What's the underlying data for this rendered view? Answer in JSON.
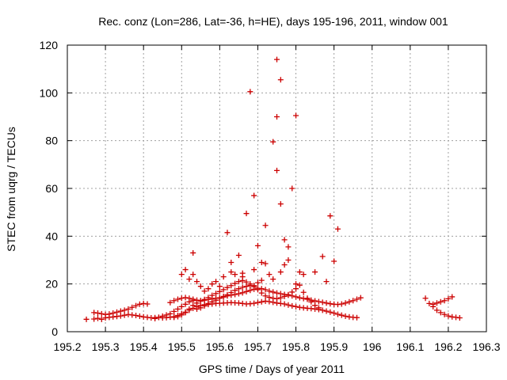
{
  "chart_data": {
    "type": "scatter",
    "title": "Rec. conz (Lon=286, Lat=-36, h=HE), days 195-196, 2011, window 001",
    "xlabel": "GPS time / Days of year 2011",
    "ylabel": "STEC from uqrg / TECUs",
    "xlim": [
      195.2,
      196.3
    ],
    "ylim": [
      0,
      120
    ],
    "xticks": [
      195.2,
      195.3,
      195.4,
      195.5,
      195.6,
      195.7,
      195.8,
      195.9,
      196,
      196.1,
      196.2,
      196.3
    ],
    "xtick_labels": [
      "195.2",
      "195.3",
      "195.4",
      "195.5",
      "195.6",
      "195.7",
      "195.8",
      "195.9",
      "196",
      "196.1",
      "196.2",
      "196.3"
    ],
    "yticks": [
      0,
      20,
      40,
      60,
      80,
      100,
      120
    ],
    "ytick_labels": [
      "0",
      "20",
      "40",
      "60",
      "80",
      "100",
      "120"
    ],
    "grid": true,
    "marker": "+",
    "color": "#cc0000",
    "series": [
      {
        "points": [
          [
            195.25,
            5.2
          ],
          [
            195.27,
            5.3
          ],
          [
            195.28,
            5.6
          ],
          [
            195.29,
            5.2
          ],
          [
            195.3,
            5.8
          ],
          [
            195.31,
            6.0
          ],
          [
            195.32,
            6.2
          ],
          [
            195.33,
            6.4
          ],
          [
            195.34,
            6.6
          ],
          [
            195.35,
            6.9
          ],
          [
            195.36,
            7.2
          ],
          [
            195.37,
            7.0
          ],
          [
            195.38,
            6.8
          ],
          [
            195.39,
            6.5
          ],
          [
            195.4,
            6.2
          ],
          [
            195.41,
            6.0
          ],
          [
            195.42,
            5.8
          ],
          [
            195.43,
            5.9
          ],
          [
            195.44,
            6.0
          ],
          [
            195.45,
            5.8
          ],
          [
            195.46,
            5.9
          ],
          [
            195.47,
            6.1
          ],
          [
            195.48,
            6.3
          ],
          [
            195.49,
            6.8
          ],
          [
            195.5,
            7.5
          ],
          [
            195.51,
            8.2
          ],
          [
            195.52,
            9.0
          ],
          [
            195.53,
            9.8
          ],
          [
            195.54,
            10.5
          ],
          [
            195.55,
            11.0
          ],
          [
            195.56,
            11.3
          ],
          [
            195.57,
            11.4
          ],
          [
            195.58,
            11.6
          ],
          [
            195.59,
            11.8
          ],
          [
            195.6,
            11.9
          ],
          [
            195.61,
            12.0
          ],
          [
            195.62,
            12.1
          ],
          [
            195.63,
            12.2
          ],
          [
            195.64,
            12.1
          ],
          [
            195.65,
            12.0
          ],
          [
            195.66,
            11.8
          ],
          [
            195.67,
            11.6
          ],
          [
            195.68,
            11.7
          ],
          [
            195.69,
            11.9
          ],
          [
            195.7,
            12.2
          ],
          [
            195.71,
            12.5
          ],
          [
            195.72,
            12.8
          ],
          [
            195.73,
            12.6
          ],
          [
            195.74,
            12.3
          ],
          [
            195.75,
            12.0
          ],
          [
            195.76,
            11.8
          ],
          [
            195.77,
            11.6
          ],
          [
            195.78,
            11.2
          ],
          [
            195.79,
            10.8
          ],
          [
            195.8,
            10.5
          ],
          [
            195.81,
            10.2
          ],
          [
            195.82,
            10.0
          ],
          [
            195.83,
            9.8
          ],
          [
            195.84,
            9.7
          ],
          [
            195.85,
            9.5
          ],
          [
            195.86,
            9.3
          ],
          [
            195.87,
            9.0
          ],
          [
            195.88,
            8.6
          ],
          [
            195.89,
            8.2
          ],
          [
            195.9,
            7.8
          ],
          [
            195.91,
            7.3
          ],
          [
            195.92,
            6.9
          ],
          [
            195.93,
            6.5
          ],
          [
            195.94,
            6.2
          ],
          [
            195.95,
            6.0
          ],
          [
            195.96,
            5.9
          ],
          [
            195.27,
            8.0
          ],
          [
            195.28,
            7.8
          ],
          [
            195.29,
            7.5
          ],
          [
            195.3,
            7.2
          ],
          [
            195.31,
            7.4
          ],
          [
            195.32,
            7.8
          ],
          [
            195.33,
            8.2
          ],
          [
            195.34,
            8.6
          ],
          [
            195.35,
            9.0
          ],
          [
            195.36,
            9.5
          ],
          [
            195.37,
            10.2
          ],
          [
            195.38,
            10.9
          ],
          [
            195.39,
            11.5
          ],
          [
            195.4,
            11.8
          ],
          [
            195.41,
            11.6
          ],
          [
            195.47,
            12.2
          ],
          [
            195.48,
            13.0
          ],
          [
            195.49,
            13.6
          ],
          [
            195.5,
            14.0
          ],
          [
            195.51,
            14.3
          ],
          [
            195.52,
            14.0
          ],
          [
            195.53,
            13.6
          ],
          [
            195.54,
            13.2
          ],
          [
            195.55,
            13.0
          ],
          [
            195.56,
            13.2
          ],
          [
            195.57,
            13.5
          ],
          [
            195.58,
            13.8
          ],
          [
            195.59,
            14.0
          ],
          [
            195.6,
            14.2
          ],
          [
            195.61,
            14.5
          ],
          [
            195.62,
            15.0
          ],
          [
            195.63,
            15.3
          ],
          [
            195.64,
            15.6
          ],
          [
            195.65,
            15.9
          ],
          [
            195.66,
            16.3
          ],
          [
            195.67,
            16.8
          ],
          [
            195.68,
            17.3
          ],
          [
            195.69,
            17.8
          ],
          [
            195.7,
            18.2
          ],
          [
            195.71,
            18.0
          ],
          [
            195.72,
            17.6
          ],
          [
            195.73,
            17.0
          ],
          [
            195.74,
            16.6
          ],
          [
            195.75,
            16.2
          ],
          [
            195.76,
            15.9
          ],
          [
            195.77,
            15.6
          ],
          [
            195.78,
            15.3
          ],
          [
            195.79,
            15.0
          ],
          [
            195.8,
            14.6
          ],
          [
            195.81,
            14.2
          ],
          [
            195.82,
            13.9
          ],
          [
            195.83,
            13.6
          ],
          [
            195.84,
            13.2
          ],
          [
            195.85,
            12.9
          ],
          [
            195.86,
            12.6
          ],
          [
            195.87,
            12.3
          ],
          [
            195.88,
            12.0
          ],
          [
            195.89,
            11.7
          ],
          [
            195.9,
            11.5
          ],
          [
            195.91,
            11.4
          ],
          [
            195.92,
            11.6
          ],
          [
            195.93,
            12.0
          ],
          [
            195.94,
            12.5
          ],
          [
            195.95,
            13.0
          ],
          [
            195.96,
            13.6
          ],
          [
            195.97,
            14.2
          ],
          [
            195.48,
            6.0
          ],
          [
            195.49,
            6.3
          ],
          [
            195.5,
            7.0
          ],
          [
            195.51,
            8.0
          ],
          [
            195.52,
            9.5
          ],
          [
            195.53,
            11.0
          ],
          [
            195.54,
            12.0
          ],
          [
            195.55,
            12.8
          ],
          [
            195.56,
            13.5
          ],
          [
            195.57,
            14.3
          ],
          [
            195.58,
            15.2
          ],
          [
            195.59,
            16.0
          ],
          [
            195.6,
            16.8
          ],
          [
            195.61,
            17.6
          ],
          [
            195.62,
            18.5
          ],
          [
            195.63,
            19.3
          ],
          [
            195.64,
            20.2
          ],
          [
            195.65,
            21.0
          ],
          [
            195.66,
            21.4
          ],
          [
            195.67,
            20.8
          ],
          [
            195.68,
            20.0
          ],
          [
            195.69,
            19.3
          ],
          [
            195.7,
            20.5
          ],
          [
            195.71,
            21.5
          ],
          [
            195.5,
            24.0
          ],
          [
            195.51,
            26.0
          ],
          [
            195.52,
            22.0
          ],
          [
            195.53,
            24.0
          ],
          [
            195.54,
            21.0
          ],
          [
            195.55,
            19.0
          ],
          [
            195.56,
            17.0
          ],
          [
            195.57,
            18.0
          ],
          [
            195.58,
            20.0
          ],
          [
            195.59,
            21.0
          ],
          [
            195.6,
            19.0
          ],
          [
            195.61,
            23.0
          ],
          [
            195.62,
            41.5
          ],
          [
            195.63,
            29.0
          ],
          [
            195.64,
            24.0
          ],
          [
            195.65,
            32.0
          ],
          [
            195.66,
            24.5
          ],
          [
            195.67,
            49.5
          ],
          [
            195.68,
            100.5
          ],
          [
            195.69,
            57.0
          ],
          [
            195.7,
            36.0
          ],
          [
            195.71,
            29.0
          ],
          [
            195.72,
            44.5
          ],
          [
            195.73,
            24.0
          ],
          [
            195.74,
            79.5
          ],
          [
            195.75,
            114.0
          ],
          [
            195.75,
            90.0
          ],
          [
            195.75,
            67.5
          ],
          [
            195.76,
            105.5
          ],
          [
            195.76,
            53.5
          ],
          [
            195.77,
            38.5
          ],
          [
            195.77,
            28.0
          ],
          [
            195.78,
            30.0
          ],
          [
            195.79,
            60.0
          ],
          [
            195.8,
            90.5
          ],
          [
            195.81,
            25.0
          ],
          [
            195.82,
            24.0
          ],
          [
            195.87,
            31.5
          ],
          [
            195.89,
            48.5
          ],
          [
            195.91,
            43.0
          ],
          [
            195.9,
            29.5
          ],
          [
            195.53,
            33.0
          ],
          [
            195.63,
            25.0
          ],
          [
            195.66,
            23.0
          ],
          [
            195.69,
            26.0
          ],
          [
            195.72,
            28.5
          ],
          [
            195.74,
            22.0
          ],
          [
            195.76,
            25.0
          ],
          [
            195.78,
            35.5
          ],
          [
            195.8,
            20.0
          ],
          [
            195.85,
            25.0
          ],
          [
            195.88,
            21.0
          ],
          [
            195.54,
            9.5
          ],
          [
            195.55,
            10.0
          ],
          [
            195.56,
            10.8
          ],
          [
            195.57,
            11.8
          ],
          [
            195.58,
            12.5
          ],
          [
            195.59,
            13.2
          ],
          [
            195.6,
            14.0
          ],
          [
            195.61,
            14.8
          ],
          [
            195.62,
            15.5
          ],
          [
            195.63,
            16.4
          ],
          [
            195.64,
            17.3
          ],
          [
            195.65,
            18.0
          ],
          [
            195.66,
            18.6
          ],
          [
            195.67,
            19.0
          ],
          [
            195.68,
            19.4
          ],
          [
            195.69,
            18.8
          ],
          [
            195.7,
            17.6
          ],
          [
            195.71,
            16.2
          ],
          [
            195.72,
            15.0
          ],
          [
            195.73,
            14.4
          ],
          [
            195.74,
            14.0
          ],
          [
            195.75,
            13.8
          ],
          [
            195.76,
            14.2
          ],
          [
            195.77,
            14.8
          ],
          [
            195.78,
            15.5
          ],
          [
            195.79,
            16.6
          ],
          [
            195.8,
            18.0
          ],
          [
            195.81,
            19.5
          ],
          [
            195.82,
            16.5
          ],
          [
            195.83,
            14.0
          ],
          [
            195.84,
            12.5
          ],
          [
            195.85,
            11.0
          ],
          [
            195.86,
            10.0
          ],
          [
            195.43,
            5.5
          ],
          [
            195.44,
            6.0
          ],
          [
            195.45,
            6.5
          ],
          [
            195.46,
            7.0
          ],
          [
            195.47,
            7.5
          ],
          [
            195.48,
            8.5
          ],
          [
            195.49,
            9.5
          ],
          [
            195.5,
            10.5
          ],
          [
            195.51,
            11.5
          ],
          [
            195.52,
            12.5
          ],
          [
            195.53,
            13.0
          ],
          [
            196.14,
            14.0
          ],
          [
            196.15,
            11.8
          ],
          [
            196.16,
            11.5
          ],
          [
            196.17,
            12.0
          ],
          [
            196.18,
            12.5
          ],
          [
            196.19,
            13.0
          ],
          [
            196.2,
            13.8
          ],
          [
            196.21,
            14.6
          ],
          [
            196.16,
            10.5
          ],
          [
            196.17,
            9.0
          ],
          [
            196.18,
            8.0
          ],
          [
            196.19,
            7.2
          ],
          [
            196.2,
            6.6
          ],
          [
            196.21,
            6.2
          ],
          [
            196.22,
            6.0
          ],
          [
            196.23,
            5.8
          ]
        ]
      }
    ]
  }
}
